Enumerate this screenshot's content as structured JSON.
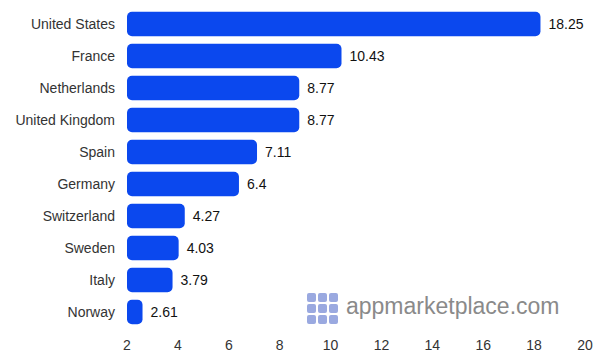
{
  "chart_data": {
    "type": "bar",
    "orientation": "horizontal",
    "categories": [
      "United States",
      "France",
      "Netherlands",
      "United Kingdom",
      "Spain",
      "Germany",
      "Switzerland",
      "Sweden",
      "Italy",
      "Norway"
    ],
    "values": [
      18.25,
      10.43,
      8.77,
      8.77,
      7.11,
      6.4,
      4.27,
      4.03,
      3.79,
      2.61
    ],
    "color": "#0b48ee",
    "xlim": [
      2,
      20
    ],
    "xticks": [
      2,
      4,
      6,
      8,
      10,
      12,
      14,
      16,
      18,
      20
    ],
    "grid": false,
    "data_labels": true,
    "annotations": [
      "appmarketplace.com"
    ]
  }
}
